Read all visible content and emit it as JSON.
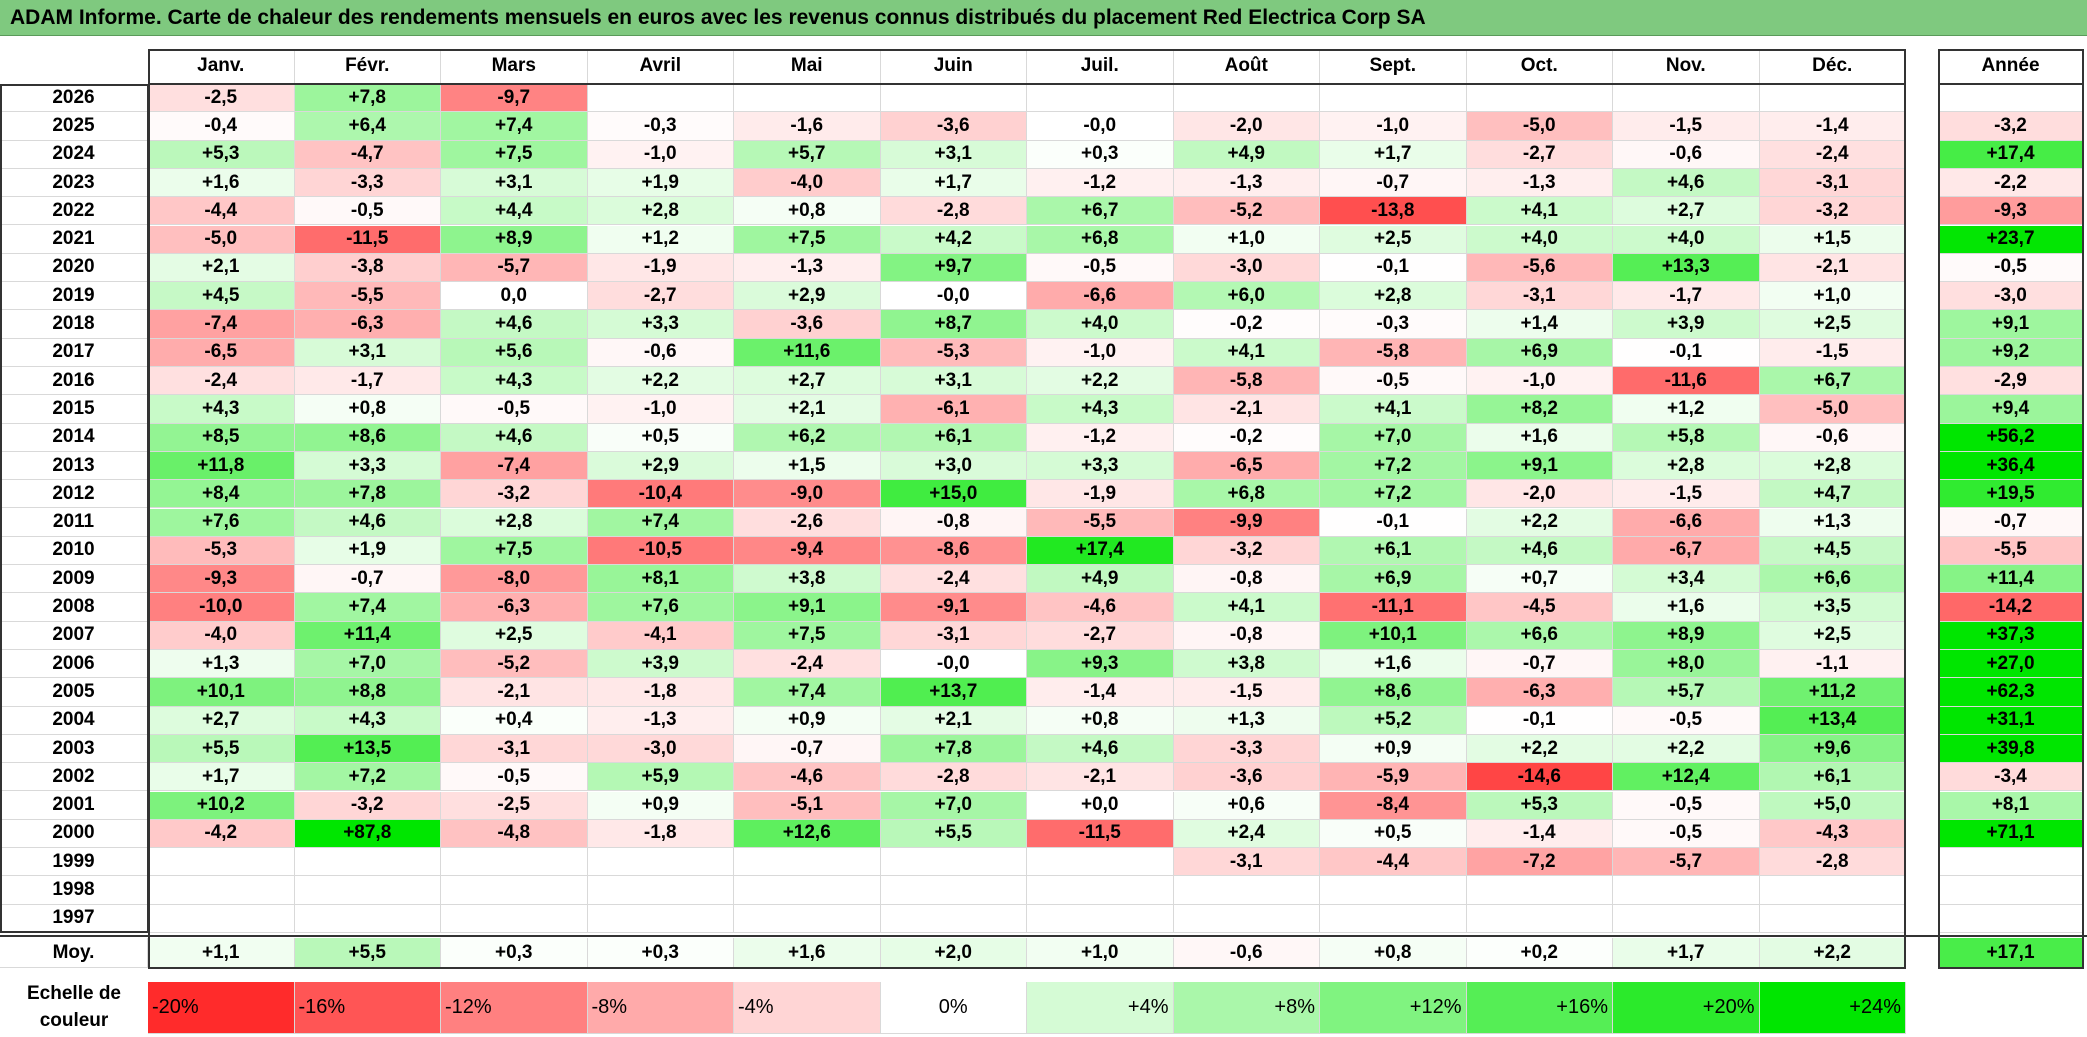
{
  "title": "ADAM Informe. Carte de chaleur des rendements mensuels en euros avec les revenus connus distribués du placement Red Electrica Corp SA",
  "chart_data": {
    "type": "heatmap",
    "columns": [
      "Janv.",
      "Févr.",
      "Mars",
      "Avril",
      "Mai",
      "Juin",
      "Juil.",
      "Août",
      "Sept.",
      "Oct.",
      "Nov.",
      "Déc."
    ],
    "annual_header": "Année",
    "rows": [
      {
        "year": "2026",
        "values": [
          "-2,5",
          "+7,8",
          "-9,7",
          "",
          "",
          "",
          "",
          "",
          "",
          "",
          "",
          ""
        ],
        "annual": ""
      },
      {
        "year": "2025",
        "values": [
          "-0,4",
          "+6,4",
          "+7,4",
          "-0,3",
          "-1,6",
          "-3,6",
          "-0,0",
          "-2,0",
          "-1,0",
          "-5,0",
          "-1,5",
          "-1,4"
        ],
        "annual": "-3,2"
      },
      {
        "year": "2024",
        "values": [
          "+5,3",
          "-4,7",
          "+7,5",
          "-1,0",
          "+5,7",
          "+3,1",
          "+0,3",
          "+4,9",
          "+1,7",
          "-2,7",
          "-0,6",
          "-2,4"
        ],
        "annual": "+17,4"
      },
      {
        "year": "2023",
        "values": [
          "+1,6",
          "-3,3",
          "+3,1",
          "+1,9",
          "-4,0",
          "+1,7",
          "-1,2",
          "-1,3",
          "-0,7",
          "-1,3",
          "+4,6",
          "-3,1"
        ],
        "annual": "-2,2"
      },
      {
        "year": "2022",
        "values": [
          "-4,4",
          "-0,5",
          "+4,4",
          "+2,8",
          "+0,8",
          "-2,8",
          "+6,7",
          "-5,2",
          "-13,8",
          "+4,1",
          "+2,7",
          "-3,2"
        ],
        "annual": "-9,3"
      },
      {
        "year": "2021",
        "values": [
          "-5,0",
          "-11,5",
          "+8,9",
          "+1,2",
          "+7,5",
          "+4,2",
          "+6,8",
          "+1,0",
          "+2,5",
          "+4,0",
          "+4,0",
          "+1,5"
        ],
        "annual": "+23,7"
      },
      {
        "year": "2020",
        "values": [
          "+2,1",
          "-3,8",
          "-5,7",
          "-1,9",
          "-1,3",
          "+9,7",
          "-0,5",
          "-3,0",
          "-0,1",
          "-5,6",
          "+13,3",
          "-2,1"
        ],
        "annual": "-0,5"
      },
      {
        "year": "2019",
        "values": [
          "+4,5",
          "-5,5",
          "0,0",
          "-2,7",
          "+2,9",
          "-0,0",
          "-6,6",
          "+6,0",
          "+2,8",
          "-3,1",
          "-1,7",
          "+1,0"
        ],
        "annual": "-3,0"
      },
      {
        "year": "2018",
        "values": [
          "-7,4",
          "-6,3",
          "+4,6",
          "+3,3",
          "-3,6",
          "+8,7",
          "+4,0",
          "-0,2",
          "-0,3",
          "+1,4",
          "+3,9",
          "+2,5"
        ],
        "annual": "+9,1"
      },
      {
        "year": "2017",
        "values": [
          "-6,5",
          "+3,1",
          "+5,6",
          "-0,6",
          "+11,6",
          "-5,3",
          "-1,0",
          "+4,1",
          "-5,8",
          "+6,9",
          "-0,1",
          "-1,5"
        ],
        "annual": "+9,2"
      },
      {
        "year": "2016",
        "values": [
          "-2,4",
          "-1,7",
          "+4,3",
          "+2,2",
          "+2,7",
          "+3,1",
          "+2,2",
          "-5,8",
          "-0,5",
          "-1,0",
          "-11,6",
          "+6,7"
        ],
        "annual": "-2,9"
      },
      {
        "year": "2015",
        "values": [
          "+4,3",
          "+0,8",
          "-0,5",
          "-1,0",
          "+2,1",
          "-6,1",
          "+4,3",
          "-2,1",
          "+4,1",
          "+8,2",
          "+1,2",
          "-5,0"
        ],
        "annual": "+9,4"
      },
      {
        "year": "2014",
        "values": [
          "+8,5",
          "+8,6",
          "+4,6",
          "+0,5",
          "+6,2",
          "+6,1",
          "-1,2",
          "-0,2",
          "+7,0",
          "+1,6",
          "+5,8",
          "-0,6"
        ],
        "annual": "+56,2"
      },
      {
        "year": "2013",
        "values": [
          "+11,8",
          "+3,3",
          "-7,4",
          "+2,9",
          "+1,5",
          "+3,0",
          "+3,3",
          "-6,5",
          "+7,2",
          "+9,1",
          "+2,8",
          "+2,8"
        ],
        "annual": "+36,4"
      },
      {
        "year": "2012",
        "values": [
          "+8,4",
          "+7,8",
          "-3,2",
          "-10,4",
          "-9,0",
          "+15,0",
          "-1,9",
          "+6,8",
          "+7,2",
          "-2,0",
          "-1,5",
          "+4,7"
        ],
        "annual": "+19,5"
      },
      {
        "year": "2011",
        "values": [
          "+7,6",
          "+4,6",
          "+2,8",
          "+7,4",
          "-2,6",
          "-0,8",
          "-5,5",
          "-9,9",
          "-0,1",
          "+2,2",
          "-6,6",
          "+1,3"
        ],
        "annual": "-0,7"
      },
      {
        "year": "2010",
        "values": [
          "-5,3",
          "+1,9",
          "+7,5",
          "-10,5",
          "-9,4",
          "-8,6",
          "+17,4",
          "-3,2",
          "+6,1",
          "+4,6",
          "-6,7",
          "+4,5"
        ],
        "annual": "-5,5"
      },
      {
        "year": "2009",
        "values": [
          "-9,3",
          "-0,7",
          "-8,0",
          "+8,1",
          "+3,8",
          "-2,4",
          "+4,9",
          "-0,8",
          "+6,9",
          "+0,7",
          "+3,4",
          "+6,6"
        ],
        "annual": "+11,4"
      },
      {
        "year": "2008",
        "values": [
          "-10,0",
          "+7,4",
          "-6,3",
          "+7,6",
          "+9,1",
          "-9,1",
          "-4,6",
          "+4,1",
          "-11,1",
          "-4,5",
          "+1,6",
          "+3,5"
        ],
        "annual": "-14,2"
      },
      {
        "year": "2007",
        "values": [
          "-4,0",
          "+11,4",
          "+2,5",
          "-4,1",
          "+7,5",
          "-3,1",
          "-2,7",
          "-0,8",
          "+10,1",
          "+6,6",
          "+8,9",
          "+2,5"
        ],
        "annual": "+37,3"
      },
      {
        "year": "2006",
        "values": [
          "+1,3",
          "+7,0",
          "-5,2",
          "+3,9",
          "-2,4",
          "-0,0",
          "+9,3",
          "+3,8",
          "+1,6",
          "-0,7",
          "+8,0",
          "-1,1"
        ],
        "annual": "+27,0"
      },
      {
        "year": "2005",
        "values": [
          "+10,1",
          "+8,8",
          "-2,1",
          "-1,8",
          "+7,4",
          "+13,7",
          "-1,4",
          "-1,5",
          "+8,6",
          "-6,3",
          "+5,7",
          "+11,2"
        ],
        "annual": "+62,3"
      },
      {
        "year": "2004",
        "values": [
          "+2,7",
          "+4,3",
          "+0,4",
          "-1,3",
          "+0,9",
          "+2,1",
          "+0,8",
          "+1,3",
          "+5,2",
          "-0,1",
          "-0,5",
          "+13,4"
        ],
        "annual": "+31,1"
      },
      {
        "year": "2003",
        "values": [
          "+5,5",
          "+13,5",
          "-3,1",
          "-3,0",
          "-0,7",
          "+7,8",
          "+4,6",
          "-3,3",
          "+0,9",
          "+2,2",
          "+2,2",
          "+9,6"
        ],
        "annual": "+39,8"
      },
      {
        "year": "2002",
        "values": [
          "+1,7",
          "+7,2",
          "-0,5",
          "+5,9",
          "-4,6",
          "-2,8",
          "-2,1",
          "-3,6",
          "-5,9",
          "-14,6",
          "+12,4",
          "+6,1"
        ],
        "annual": "-3,4"
      },
      {
        "year": "2001",
        "values": [
          "+10,2",
          "-3,2",
          "-2,5",
          "+0,9",
          "-5,1",
          "+7,0",
          "+0,0",
          "+0,6",
          "-8,4",
          "+5,3",
          "-0,5",
          "+5,0"
        ],
        "annual": "+8,1"
      },
      {
        "year": "2000",
        "values": [
          "-4,2",
          "+87,8",
          "-4,8",
          "-1,8",
          "+12,6",
          "+5,5",
          "-11,5",
          "+2,4",
          "+0,5",
          "-1,4",
          "-0,5",
          "-4,3"
        ],
        "annual": "+71,1"
      },
      {
        "year": "1999",
        "values": [
          "",
          "",
          "",
          "",
          "",
          "",
          "",
          "-3,1",
          "-4,4",
          "-7,2",
          "-5,7",
          "-2,8"
        ],
        "annual": ""
      },
      {
        "year": "1998",
        "values": [
          "",
          "",
          "",
          "",
          "",
          "",
          "",
          "",
          "",
          "",
          "",
          ""
        ],
        "annual": ""
      },
      {
        "year": "1997",
        "values": [
          "",
          "",
          "",
          "",
          "",
          "",
          "",
          "",
          "",
          "",
          "",
          ""
        ],
        "annual": ""
      }
    ],
    "average": {
      "label": "Moy.",
      "values": [
        "+1,1",
        "+5,5",
        "+0,3",
        "+0,3",
        "+1,6",
        "+2,0",
        "+1,0",
        "-0,6",
        "+0,8",
        "+0,2",
        "+1,7",
        "+2,2"
      ],
      "annual": "+17,1"
    },
    "legend": {
      "label_line1": "Echelle de",
      "label_line2": "couleur",
      "steps": [
        {
          "label": "-20%",
          "value": -20
        },
        {
          "label": "-16%",
          "value": -16
        },
        {
          "label": "-12%",
          "value": -12
        },
        {
          "label": "-8%",
          "value": -8
        },
        {
          "label": "-4%",
          "value": -4
        },
        {
          "label": "0%",
          "value": 0
        },
        {
          "label": "+4%",
          "value": 4
        },
        {
          "label": "+8%",
          "value": 8
        },
        {
          "label": "+12%",
          "value": 12
        },
        {
          "label": "+16%",
          "value": 16
        },
        {
          "label": "+20%",
          "value": 20
        },
        {
          "label": "+24%",
          "value": 24
        }
      ]
    },
    "colors": {
      "max_red": "#ff0000",
      "max_green": "#00e600",
      "neutral": "#ffffff",
      "title_bg": "#7fc97f"
    }
  }
}
